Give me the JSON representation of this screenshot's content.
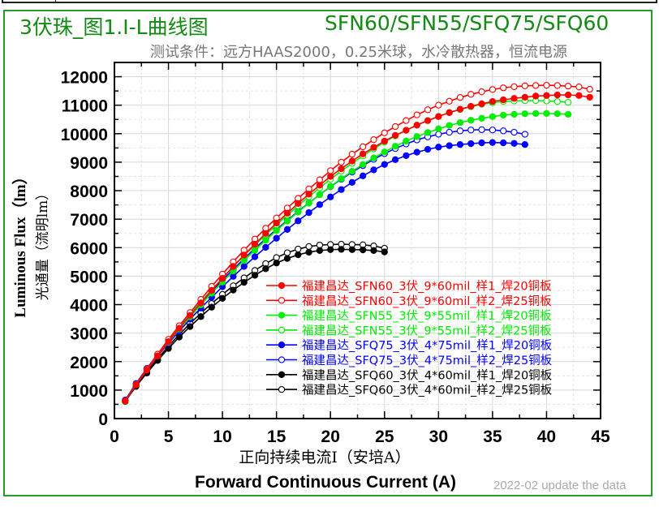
{
  "header": {
    "title_left": "3伏珠_图1.I-L曲线图",
    "title_right": "SFN60/SFN55/SFQ75/SFQ60",
    "subtitle": "测试条件：远方HAAS2000，0.25米球，水冷散热器，恒流电源"
  },
  "footer_note": "2022-02 update the data",
  "chart_data": {
    "type": "line",
    "title": "3伏珠_图1.I-L曲线图",
    "xlabel_cn": "正向持续电流I（安培A）",
    "xlabel": "Forward Continuous Current (A)",
    "ylabel": "Luminous Flux（lm）",
    "ylabel_cn": "光通量（流明lm）",
    "xlim": [
      0,
      45
    ],
    "ylim": [
      0,
      12500
    ],
    "xticks": [
      "0",
      "5",
      "10",
      "15",
      "20",
      "25",
      "30",
      "35",
      "40",
      "45"
    ],
    "yticks": [
      "0",
      "1000",
      "2000",
      "3000",
      "4000",
      "5000",
      "6000",
      "7000",
      "8000",
      "9000",
      "10000",
      "11000",
      "12000"
    ],
    "grid": true,
    "legend_position": "center-right",
    "series": [
      {
        "name": "福建昌达_SFN60_3伏_9*60mil_样1_焊20铜板",
        "color": "#ff0000",
        "marker": "filled",
        "x": [
          1,
          2,
          3,
          4,
          5,
          6,
          7,
          8,
          9,
          10,
          11,
          12,
          13,
          14,
          15,
          16,
          17,
          18,
          19,
          20,
          21,
          22,
          23,
          24,
          25,
          26,
          27,
          28,
          29,
          30,
          31,
          32,
          33,
          34,
          35,
          36,
          37,
          38,
          39,
          40,
          41,
          42,
          43,
          44
        ],
        "y": [
          620,
          1180,
          1700,
          2200,
          2700,
          3170,
          3620,
          4060,
          4500,
          4920,
          5340,
          5740,
          6120,
          6500,
          6860,
          7210,
          7550,
          7880,
          8190,
          8500,
          8770,
          9040,
          9290,
          9520,
          9740,
          9940,
          10120,
          10300,
          10460,
          10600,
          10740,
          10860,
          10960,
          11050,
          11130,
          11190,
          11240,
          11280,
          11320,
          11340,
          11360,
          11360,
          11340,
          11280
        ]
      },
      {
        "name": "福建昌达_SFN60_3伏_9*60mil_样2_焊25铜板",
        "color": "#ff0000",
        "marker": "open",
        "x": [
          1,
          2,
          3,
          4,
          5,
          6,
          7,
          8,
          9,
          10,
          11,
          12,
          13,
          14,
          15,
          16,
          17,
          18,
          19,
          20,
          21,
          22,
          23,
          24,
          25,
          26,
          27,
          28,
          29,
          30,
          31,
          32,
          33,
          34,
          35,
          36,
          37,
          38,
          39,
          40,
          41,
          42,
          43,
          44
        ],
        "y": [
          620,
          1200,
          1740,
          2260,
          2780,
          3260,
          3720,
          4180,
          4640,
          5070,
          5500,
          5910,
          6300,
          6680,
          7040,
          7390,
          7730,
          8060,
          8380,
          8700,
          9000,
          9280,
          9540,
          9790,
          10030,
          10250,
          10460,
          10660,
          10840,
          11000,
          11140,
          11270,
          11380,
          11470,
          11550,
          11610,
          11650,
          11680,
          11690,
          11700,
          11690,
          11670,
          11640,
          11560
        ]
      },
      {
        "name": "福建昌达_SFN55_3伏_9*55mil_样1_焊20铜板",
        "color": "#00ee00",
        "marker": "filled",
        "x": [
          1,
          2,
          3,
          4,
          5,
          6,
          7,
          8,
          9,
          10,
          11,
          12,
          13,
          14,
          15,
          16,
          17,
          18,
          19,
          20,
          21,
          22,
          23,
          24,
          25,
          26,
          27,
          28,
          29,
          30,
          31,
          32,
          33,
          34,
          35,
          36,
          37,
          38,
          39,
          40,
          41,
          42
        ],
        "y": [
          610,
          1180,
          1700,
          2200,
          2680,
          3140,
          3570,
          3990,
          4400,
          4790,
          5180,
          5550,
          5910,
          6260,
          6600,
          6930,
          7250,
          7560,
          7860,
          8150,
          8420,
          8680,
          8920,
          9150,
          9360,
          9560,
          9740,
          9900,
          10040,
          10170,
          10290,
          10390,
          10470,
          10540,
          10600,
          10650,
          10680,
          10700,
          10710,
          10710,
          10700,
          10680
        ]
      },
      {
        "name": "福建昌达_SFN55_3伏_9*55mil_样2_焊25铜板",
        "color": "#00ee00",
        "marker": "open",
        "x": [
          1,
          2,
          3,
          4,
          5,
          6,
          7,
          8,
          9,
          10,
          11,
          12,
          13,
          14,
          15,
          16,
          17,
          18,
          19,
          20,
          21,
          22,
          23,
          24,
          25,
          26,
          27,
          28,
          29,
          30,
          31,
          32,
          33,
          34,
          35,
          36,
          37,
          38,
          39,
          40,
          41,
          42
        ],
        "y": [
          610,
          1190,
          1730,
          2240,
          2740,
          3210,
          3660,
          4100,
          4520,
          4930,
          5330,
          5720,
          6090,
          6450,
          6800,
          7140,
          7470,
          7790,
          8100,
          8400,
          8690,
          8960,
          9220,
          9470,
          9700,
          9920,
          10120,
          10300,
          10460,
          10610,
          10740,
          10850,
          10950,
          11030,
          11090,
          11130,
          11150,
          11160,
          11160,
          11150,
          11130,
          11100
        ]
      },
      {
        "name": "福建昌达_SFQ75_3伏_4*75mil_样1_焊20铜板",
        "color": "#0000ff",
        "marker": "filled",
        "x": [
          1,
          2,
          3,
          4,
          5,
          6,
          7,
          8,
          9,
          10,
          11,
          12,
          13,
          14,
          15,
          16,
          17,
          18,
          19,
          20,
          21,
          22,
          23,
          24,
          25,
          26,
          27,
          28,
          29,
          30,
          31,
          32,
          33,
          34,
          35,
          36,
          37,
          38
        ],
        "y": [
          640,
          1200,
          1710,
          2190,
          2640,
          3070,
          3490,
          3880,
          4260,
          4630,
          4990,
          5340,
          5680,
          6010,
          6330,
          6640,
          6940,
          7230,
          7510,
          7780,
          8040,
          8290,
          8520,
          8730,
          8920,
          9090,
          9230,
          9350,
          9450,
          9530,
          9580,
          9620,
          9650,
          9680,
          9690,
          9680,
          9660,
          9620
        ]
      },
      {
        "name": "福建昌达_SFQ75_3伏_4*75mil_样2_焊25铜板",
        "color": "#0000ff",
        "marker": "open",
        "x": [
          1,
          2,
          3,
          4,
          5,
          6,
          7,
          8,
          9,
          10,
          11,
          12,
          13,
          14,
          15,
          16,
          17,
          18,
          19,
          20,
          21,
          22,
          23,
          24,
          25,
          26,
          27,
          28,
          29,
          30,
          31,
          32,
          33,
          34,
          35,
          36,
          37,
          38
        ],
        "y": [
          650,
          1230,
          1760,
          2260,
          2740,
          3200,
          3640,
          4060,
          4470,
          4860,
          5240,
          5610,
          5970,
          6310,
          6640,
          6960,
          7270,
          7570,
          7860,
          8140,
          8400,
          8650,
          8880,
          9100,
          9300,
          9480,
          9640,
          9780,
          9890,
          9980,
          10050,
          10100,
          10130,
          10140,
          10130,
          10100,
          10050,
          9980
        ]
      },
      {
        "name": "福建昌达_SFQ60_3伏_4*60mil_样1_焊20铜板",
        "color": "#000000",
        "marker": "filled",
        "x": [
          1,
          2,
          3,
          4,
          5,
          6,
          7,
          8,
          9,
          10,
          11,
          12,
          13,
          14,
          15,
          16,
          17,
          18,
          19,
          20,
          21,
          22,
          23,
          24,
          25
        ],
        "y": [
          600,
          1130,
          1600,
          2040,
          2460,
          2860,
          3230,
          3580,
          3910,
          4220,
          4510,
          4780,
          5030,
          5260,
          5460,
          5620,
          5750,
          5840,
          5900,
          5930,
          5940,
          5930,
          5920,
          5900,
          5850
        ]
      },
      {
        "name": "福建昌达_SFQ60_3伏_4*60mil_样2_焊25铜板",
        "color": "#000000",
        "marker": "open",
        "x": [
          1,
          2,
          3,
          4,
          5,
          6,
          7,
          8,
          9,
          10,
          11,
          12,
          13,
          14,
          15,
          16,
          17,
          18,
          19,
          20,
          21,
          22,
          23,
          24,
          25
        ],
        "y": [
          600,
          1150,
          1640,
          2100,
          2540,
          2950,
          3340,
          3700,
          4040,
          4360,
          4660,
          4940,
          5200,
          5440,
          5650,
          5820,
          5950,
          6040,
          6090,
          6110,
          6120,
          6110,
          6100,
          6060,
          5980
        ]
      }
    ]
  }
}
